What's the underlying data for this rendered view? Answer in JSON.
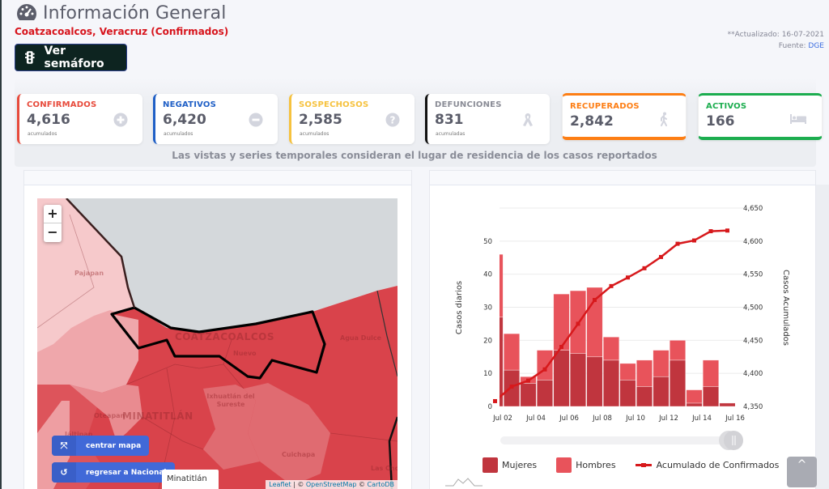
{
  "header": {
    "title": "Información General",
    "subtitle": "Coatzacoalcos, Veracruz (Confirmados)",
    "semaforo_button": "Ver semáforo",
    "updated": "**Actualizado: 16-07-2021",
    "source_label": "Fuente:",
    "source_value": "DGE"
  },
  "kpis": [
    {
      "label": "CONFIRMADOS",
      "value": "4,616",
      "sub": "acumulados",
      "color": "#e74a3b",
      "icon": "plus-circle-icon"
    },
    {
      "label": "NEGATIVOS",
      "value": "6,420",
      "sub": "acumulados",
      "color": "#1f5fc6",
      "icon": "minus-circle-icon"
    },
    {
      "label": "SOSPECHOSOS",
      "value": "2,585",
      "sub": "acumulados",
      "color": "#f6c23e",
      "icon": "question-circle-icon"
    },
    {
      "label": "DEFUNCIONES",
      "value": "831",
      "sub": "acumuladas",
      "color": "#111111",
      "icon": "ribbon-icon"
    },
    {
      "label": "RECUPERADOS",
      "value": "2,842",
      "color": "#fd7e14",
      "icon": "walking-icon"
    },
    {
      "label": "ACTIVOS",
      "value": "166",
      "color": "#1cad4f",
      "icon": "bed-icon"
    }
  ],
  "note": "Las vistas y series temporales consideran el lugar de residencia de los casos reportados",
  "map": {
    "zoom_in": "+",
    "zoom_out": "−",
    "labels": [
      "Pajapan",
      "COATZACOALCOS",
      "Agua Dulce",
      "Nuevo",
      "Ixhuatlán del Sureste",
      "MINATITLÁN",
      "Oteapan",
      "Jáltipan",
      "Cuichapa",
      "Las Choapas"
    ],
    "center_button": "centrar mapa",
    "national_button": "regresar a Nacional",
    "tooltip": "Minatitlán",
    "attribution": {
      "leaflet": "Leaflet",
      "sep": " | © ",
      "osm": "OpenStreetMap",
      "mid": " © ",
      "carto": "CartoDB"
    }
  },
  "chart_data": {
    "type": "bar",
    "stacked": true,
    "categories": [
      "Jul 01",
      "Jul 02",
      "Jul 03",
      "Jul 04",
      "Jul 05",
      "Jul 06",
      "Jul 07",
      "Jul 08",
      "Jul 09",
      "Jul 10",
      "Jul 11",
      "Jul 12",
      "Jul 13",
      "Jul 14",
      "Jul 15"
    ],
    "series": [
      {
        "name": "Mujeres",
        "type": "bar",
        "axis": "left",
        "color": "#c0353e",
        "values": [
          27,
          11,
          7,
          8,
          17,
          16,
          15,
          14,
          8,
          6,
          9,
          14,
          1,
          6,
          1
        ]
      },
      {
        "name": "Hombres",
        "type": "bar",
        "axis": "left",
        "color": "#e8535b",
        "values": [
          19,
          11,
          2,
          9,
          17,
          19,
          21,
          7,
          5,
          8,
          8,
          6,
          4,
          8,
          0
        ]
      },
      {
        "name": "Acumulado de Confirmados",
        "type": "line",
        "axis": "right",
        "color": "#d7191c",
        "values": [
          4358,
          4380,
          4389,
          4406,
          4440,
          4475,
          4511,
          4532,
          4545,
          4559,
          4576,
          4596,
          4601,
          4615,
          4616
        ]
      }
    ],
    "xticks": [
      "Jul 02",
      "Jul 04",
      "Jul 06",
      "Jul 08",
      "Jul 10",
      "Jul 12",
      "Jul 14",
      "Jul 16"
    ],
    "ylabel": "Casos diarios",
    "ylabel_right": "Casos Acumulados",
    "ylim": [
      0,
      60
    ],
    "yticks": [
      0,
      10,
      20,
      30,
      40,
      50
    ],
    "ylim_right": [
      4350,
      4650
    ],
    "yticks_right": [
      "4,350",
      "4,400",
      "4,450",
      "4,500",
      "4,550",
      "4,600",
      "4,650"
    ],
    "grid": true,
    "legend_position": "bottom"
  },
  "scroll_top": "^"
}
